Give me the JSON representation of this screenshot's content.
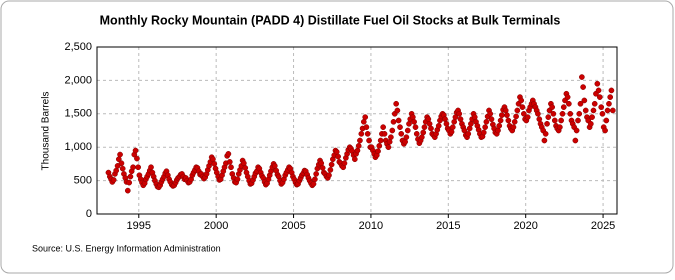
{
  "chart_data": {
    "type": "scatter",
    "title": "Monthly Rocky Mountain (PADD 4) Distillate Fuel Oil Stocks at Bulk Terminals",
    "y_label": "Thousand Barrels",
    "source": "Source: U.S. Energy Information Administration",
    "xlim": [
      1992.3,
      2025.9
    ],
    "xticks": [
      1995,
      2000,
      2005,
      2010,
      2015,
      2020,
      2025
    ],
    "ylim": [
      0,
      2500
    ],
    "yticks": [
      0,
      500,
      {
        "value": 1000,
        "label": "1,000"
      },
      {
        "value": 1500,
        "label": "1,500"
      },
      {
        "value": 2000,
        "label": "2,000"
      },
      {
        "value": 2500,
        "label": "2,500"
      }
    ],
    "grid": true,
    "color": "#cc0000",
    "x": [
      1993.04,
      1993.13,
      1993.21,
      1993.29,
      1993.38,
      1993.46,
      1993.54,
      1993.63,
      1993.71,
      1993.79,
      1993.88,
      1993.96,
      1994.04,
      1994.13,
      1994.21,
      1994.29,
      1994.38,
      1994.46,
      1994.54,
      1994.63,
      1994.71,
      1994.79,
      1994.88,
      1994.96,
      1995.04,
      1995.13,
      1995.21,
      1995.29,
      1995.38,
      1995.46,
      1995.54,
      1995.63,
      1995.71,
      1995.79,
      1995.88,
      1995.96,
      1996.04,
      1996.13,
      1996.21,
      1996.29,
      1996.38,
      1996.46,
      1996.54,
      1996.63,
      1996.71,
      1996.79,
      1996.88,
      1996.96,
      1997.04,
      1997.13,
      1997.21,
      1997.29,
      1997.38,
      1997.46,
      1997.54,
      1997.63,
      1997.71,
      1997.79,
      1997.88,
      1997.96,
      1998.04,
      1998.13,
      1998.21,
      1998.29,
      1998.38,
      1998.46,
      1998.54,
      1998.63,
      1998.71,
      1998.79,
      1998.88,
      1998.96,
      1999.04,
      1999.13,
      1999.21,
      1999.29,
      1999.38,
      1999.46,
      1999.54,
      1999.63,
      1999.71,
      1999.79,
      1999.88,
      1999.96,
      2000.04,
      2000.13,
      2000.21,
      2000.29,
      2000.38,
      2000.46,
      2000.54,
      2000.63,
      2000.71,
      2000.79,
      2000.88,
      2000.96,
      2001.04,
      2001.13,
      2001.21,
      2001.29,
      2001.38,
      2001.46,
      2001.54,
      2001.63,
      2001.71,
      2001.79,
      2001.88,
      2001.96,
      2002.04,
      2002.13,
      2002.21,
      2002.29,
      2002.38,
      2002.46,
      2002.54,
      2002.63,
      2002.71,
      2002.79,
      2002.88,
      2002.96,
      2003.04,
      2003.13,
      2003.21,
      2003.29,
      2003.38,
      2003.46,
      2003.54,
      2003.63,
      2003.71,
      2003.79,
      2003.88,
      2003.96,
      2004.04,
      2004.13,
      2004.21,
      2004.29,
      2004.38,
      2004.46,
      2004.54,
      2004.63,
      2004.71,
      2004.79,
      2004.88,
      2004.96,
      2005.04,
      2005.13,
      2005.21,
      2005.29,
      2005.38,
      2005.46,
      2005.54,
      2005.63,
      2005.71,
      2005.79,
      2005.88,
      2005.96,
      2006.04,
      2006.13,
      2006.21,
      2006.29,
      2006.38,
      2006.46,
      2006.54,
      2006.63,
      2006.71,
      2006.79,
      2006.88,
      2006.96,
      2007.04,
      2007.13,
      2007.21,
      2007.29,
      2007.38,
      2007.46,
      2007.54,
      2007.63,
      2007.71,
      2007.79,
      2007.88,
      2007.96,
      2008.04,
      2008.13,
      2008.21,
      2008.29,
      2008.38,
      2008.46,
      2008.54,
      2008.63,
      2008.71,
      2008.79,
      2008.88,
      2008.96,
      2009.04,
      2009.13,
      2009.21,
      2009.29,
      2009.38,
      2009.46,
      2009.54,
      2009.63,
      2009.71,
      2009.79,
      2009.88,
      2009.96,
      2010.04,
      2010.13,
      2010.21,
      2010.29,
      2010.38,
      2010.46,
      2010.54,
      2010.63,
      2010.71,
      2010.79,
      2010.88,
      2010.96,
      2011.04,
      2011.13,
      2011.21,
      2011.29,
      2011.38,
      2011.46,
      2011.54,
      2011.63,
      2011.71,
      2011.79,
      2011.88,
      2011.96,
      2012.04,
      2012.13,
      2012.21,
      2012.29,
      2012.38,
      2012.46,
      2012.54,
      2012.63,
      2012.71,
      2012.79,
      2012.88,
      2012.96,
      2013.04,
      2013.13,
      2013.21,
      2013.29,
      2013.38,
      2013.46,
      2013.54,
      2013.63,
      2013.71,
      2013.79,
      2013.88,
      2013.96,
      2014.04,
      2014.13,
      2014.21,
      2014.29,
      2014.38,
      2014.46,
      2014.54,
      2014.63,
      2014.71,
      2014.79,
      2014.88,
      2014.96,
      2015.04,
      2015.13,
      2015.21,
      2015.29,
      2015.38,
      2015.46,
      2015.54,
      2015.63,
      2015.71,
      2015.79,
      2015.88,
      2015.96,
      2016.04,
      2016.13,
      2016.21,
      2016.29,
      2016.38,
      2016.46,
      2016.54,
      2016.63,
      2016.71,
      2016.79,
      2016.88,
      2016.96,
      2017.04,
      2017.13,
      2017.21,
      2017.29,
      2017.38,
      2017.46,
      2017.54,
      2017.63,
      2017.71,
      2017.79,
      2017.88,
      2017.96,
      2018.04,
      2018.13,
      2018.21,
      2018.29,
      2018.38,
      2018.46,
      2018.54,
      2018.63,
      2018.71,
      2018.79,
      2018.88,
      2018.96,
      2019.04,
      2019.13,
      2019.21,
      2019.29,
      2019.38,
      2019.46,
      2019.54,
      2019.63,
      2019.71,
      2019.79,
      2019.88,
      2019.96,
      2020.04,
      2020.13,
      2020.21,
      2020.29,
      2020.38,
      2020.46,
      2020.54,
      2020.63,
      2020.71,
      2020.79,
      2020.88,
      2020.96,
      2021.04,
      2021.13,
      2021.21,
      2021.29,
      2021.38,
      2021.46,
      2021.54,
      2021.63,
      2021.71,
      2021.79,
      2021.88,
      2021.96,
      2022.04,
      2022.13,
      2022.21,
      2022.29,
      2022.38,
      2022.46,
      2022.54,
      2022.63,
      2022.71,
      2022.79,
      2022.88,
      2022.96,
      2023.04,
      2023.13,
      2023.21,
      2023.29,
      2023.38,
      2023.46,
      2023.54,
      2023.63,
      2023.71,
      2023.79,
      2023.88,
      2023.96,
      2024.04,
      2024.13,
      2024.21,
      2024.29,
      2024.38,
      2024.46,
      2024.54,
      2024.63,
      2024.71,
      2024.79,
      2024.88,
      2024.96,
      2025.04,
      2025.13,
      2025.21,
      2025.29,
      2025.38,
      2025.46,
      2025.54,
      2025.63
    ],
    "values": [
      620,
      560,
      520,
      480,
      510,
      600,
      650,
      720,
      820,
      890,
      760,
      680,
      600,
      540,
      480,
      350,
      470,
      560,
      640,
      700,
      890,
      950,
      830,
      700,
      580,
      520,
      470,
      430,
      460,
      520,
      560,
      600,
      650,
      700,
      620,
      560,
      500,
      450,
      410,
      400,
      430,
      480,
      520,
      560,
      610,
      640,
      580,
      520,
      480,
      440,
      420,
      430,
      470,
      510,
      540,
      560,
      590,
      600,
      560,
      520,
      540,
      500,
      470,
      480,
      520,
      580,
      620,
      660,
      700,
      690,
      640,
      590,
      600,
      560,
      530,
      550,
      600,
      660,
      720,
      780,
      850,
      820,
      750,
      680,
      620,
      560,
      510,
      520,
      580,
      640,
      700,
      760,
      870,
      900,
      780,
      700,
      600,
      540,
      480,
      470,
      520,
      600,
      660,
      720,
      800,
      760,
      690,
      620,
      560,
      500,
      450,
      460,
      510,
      560,
      610,
      640,
      700,
      680,
      620,
      570,
      540,
      480,
      440,
      460,
      520,
      580,
      640,
      700,
      750,
      720,
      650,
      590,
      560,
      500,
      450,
      470,
      520,
      580,
      620,
      660,
      700,
      680,
      620,
      560,
      520,
      470,
      440,
      450,
      500,
      540,
      580,
      610,
      650,
      640,
      590,
      540,
      500,
      460,
      430,
      450,
      520,
      600,
      680,
      740,
      800,
      760,
      690,
      620,
      600,
      560,
      540,
      580,
      660,
      740,
      820,
      880,
      950,
      930,
      860,
      780,
      760,
      720,
      700,
      760,
      840,
      900,
      960,
      1000,
      980,
      940,
      880,
      820,
      900,
      950,
      1020,
      1100,
      1200,
      1280,
      1380,
      1450,
      1300,
      1200,
      1100,
      1000,
      1000,
      950,
      900,
      850,
      880,
      940,
      1020,
      1100,
      1200,
      1300,
      1200,
      1100,
      1050,
      1000,
      1080,
      1150,
      1250,
      1380,
      1500,
      1650,
      1550,
      1400,
      1300,
      1200,
      1100,
      1050,
      1080,
      1150,
      1250,
      1350,
      1420,
      1500,
      1450,
      1380,
      1300,
      1200,
      1120,
      1060,
      1100,
      1150,
      1220,
      1300,
      1380,
      1450,
      1420,
      1350,
      1280,
      1200,
      1180,
      1150,
      1200,
      1260,
      1320,
      1400,
      1460,
      1500,
      1480,
      1420,
      1350,
      1280,
      1250,
      1200,
      1230,
      1300,
      1380,
      1450,
      1520,
      1550,
      1500,
      1420,
      1350,
      1300,
      1250,
      1180,
      1150,
      1200,
      1280,
      1350,
      1420,
      1500,
      1450,
      1380,
      1320,
      1260,
      1200,
      1150,
      1160,
      1220,
      1300,
      1380,
      1460,
      1550,
      1500,
      1420,
      1340,
      1280,
      1220,
      1200,
      1250,
      1320,
      1400,
      1480,
      1560,
      1600,
      1550,
      1480,
      1400,
      1320,
      1280,
      1250,
      1300,
      1380,
      1460,
      1550,
      1650,
      1750,
      1700,
      1600,
      1500,
      1420,
      1400,
      1450,
      1550,
      1600,
      1650,
      1700,
      1650,
      1600,
      1550,
      1500,
      1420,
      1350,
      1300,
      1250,
      1100,
      1200,
      1350,
      1450,
      1550,
      1650,
      1600,
      1500,
      1400,
      1320,
      1280,
      1250,
      1300,
      1400,
      1500,
      1600,
      1700,
      1800,
      1750,
      1650,
      1500,
      1400,
      1350,
      1300,
      1100,
      1250,
      1400,
      1500,
      1650,
      2050,
      1900,
      1700,
      1550,
      1450,
      1400,
      1300,
      1350,
      1450,
      1550,
      1650,
      1800,
      1950,
      1850,
      1750,
      1600,
      1500,
      1300,
      1250,
      1400,
      1550,
      1650,
      1750,
      1850,
      1550
    ]
  }
}
